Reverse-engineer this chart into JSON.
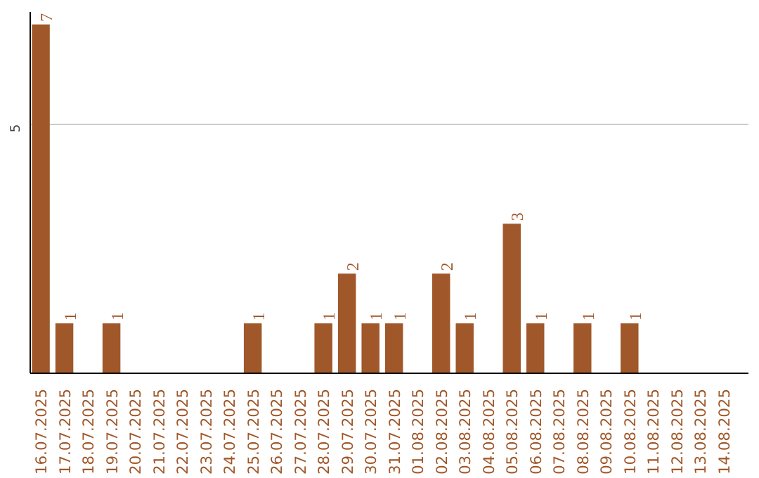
{
  "chart_data": {
    "type": "bar",
    "categories": [
      "16.07.2025",
      "17.07.2025",
      "18.07.2025",
      "19.07.2025",
      "20.07.2025",
      "21.07.2025",
      "22.07.2025",
      "23.07.2025",
      "24.07.2025",
      "25.07.2025",
      "26.07.2025",
      "27.07.2025",
      "28.07.2025",
      "29.07.2025",
      "30.07.2025",
      "31.07.2025",
      "01.08.2025",
      "02.08.2025",
      "03.08.2025",
      "04.08.2025",
      "05.08.2025",
      "06.08.2025",
      "07.08.2025",
      "08.08.2025",
      "09.08.2025",
      "10.08.2025",
      "11.08.2025",
      "12.08.2025",
      "13.08.2025",
      "14.08.2025"
    ],
    "values": [
      7,
      1,
      0,
      1,
      0,
      0,
      0,
      0,
      0,
      1,
      0,
      0,
      1,
      2,
      1,
      1,
      0,
      2,
      1,
      0,
      3,
      1,
      0,
      1,
      0,
      1,
      0,
      0,
      0,
      0
    ],
    "value_labels": [
      "7",
      "1",
      null,
      "1",
      null,
      null,
      null,
      null,
      null,
      "1",
      null,
      null,
      "1",
      "2",
      "1",
      "1",
      null,
      "2",
      "1",
      null,
      "3",
      "1",
      null,
      "1",
      null,
      "1",
      null,
      null,
      null,
      null
    ],
    "color": "#a0582a",
    "ylim": [
      0,
      7.25
    ],
    "yticks": [
      5
    ],
    "grid": "y"
  }
}
